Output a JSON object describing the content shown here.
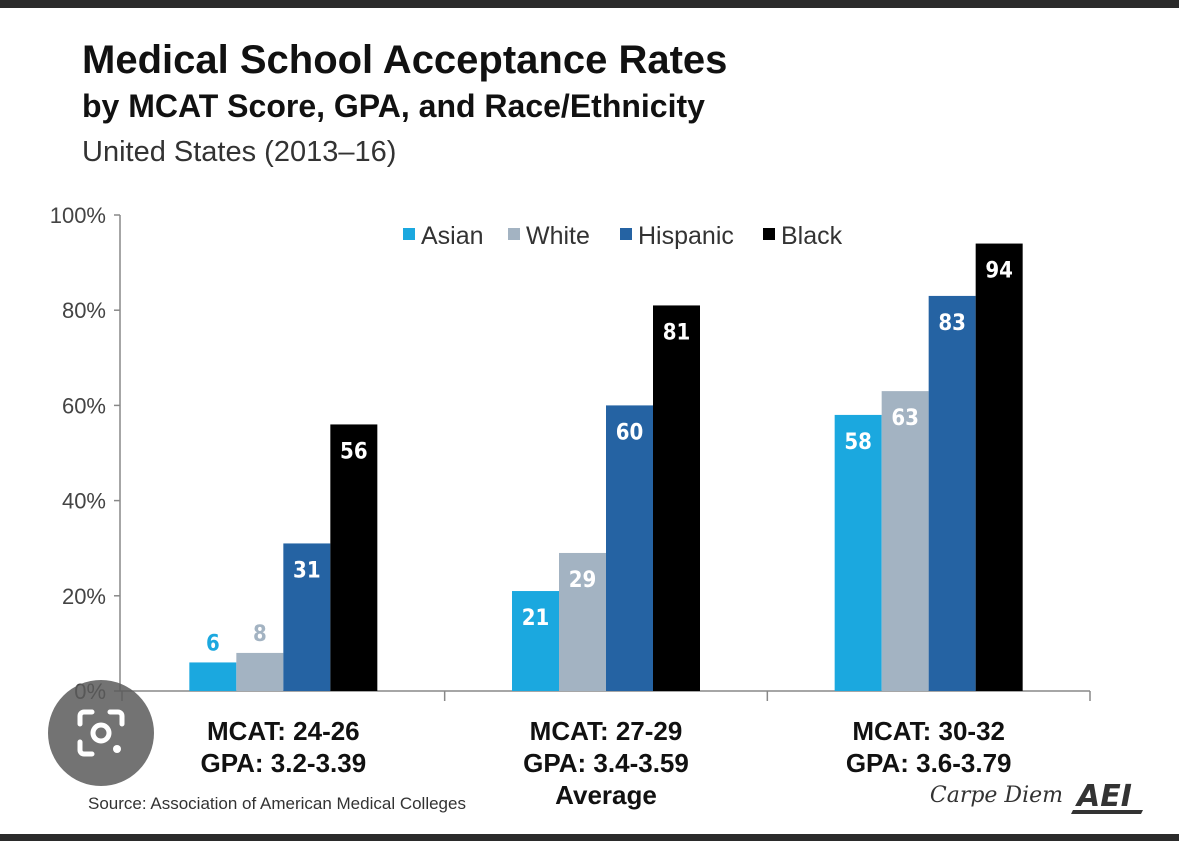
{
  "chart_data": {
    "type": "bar",
    "title": "Medical School Acceptance Rates",
    "subtitle": "by MCAT Score, GPA, and Race/Ethnicity",
    "region": "United States (2013–16)",
    "categories": [
      {
        "line1": "MCAT: 24-26",
        "line2": "GPA: 3.2-3.39",
        "line3": ""
      },
      {
        "line1": "MCAT: 27-29",
        "line2": "GPA: 3.4-3.59",
        "line3": "Average"
      },
      {
        "line1": "MCAT: 30-32",
        "line2": "GPA: 3.6-3.79",
        "line3": ""
      }
    ],
    "series": [
      {
        "name": "Asian",
        "color": "#1ba8df",
        "values": [
          6,
          21,
          58
        ]
      },
      {
        "name": "White",
        "color": "#a3b3c2",
        "values": [
          8,
          29,
          63
        ]
      },
      {
        "name": "Hispanic",
        "color": "#2563a3",
        "values": [
          31,
          60,
          83
        ]
      },
      {
        "name": "Black",
        "color": "#000000",
        "values": [
          56,
          81,
          94
        ]
      }
    ],
    "ylim": [
      0,
      100
    ],
    "yticks": [
      0,
      20,
      40,
      60,
      80,
      100
    ],
    "ytick_labels": [
      "0%",
      "20%",
      "40%",
      "60%",
      "80%",
      "100%"
    ],
    "legend_position": "top-center",
    "grid": false
  },
  "footer": {
    "source": "Source: Association of American Medical Colleges",
    "brand_text": "Carpe Diem",
    "logo_text": "AEI"
  },
  "lens_icon": "google-lens-icon"
}
